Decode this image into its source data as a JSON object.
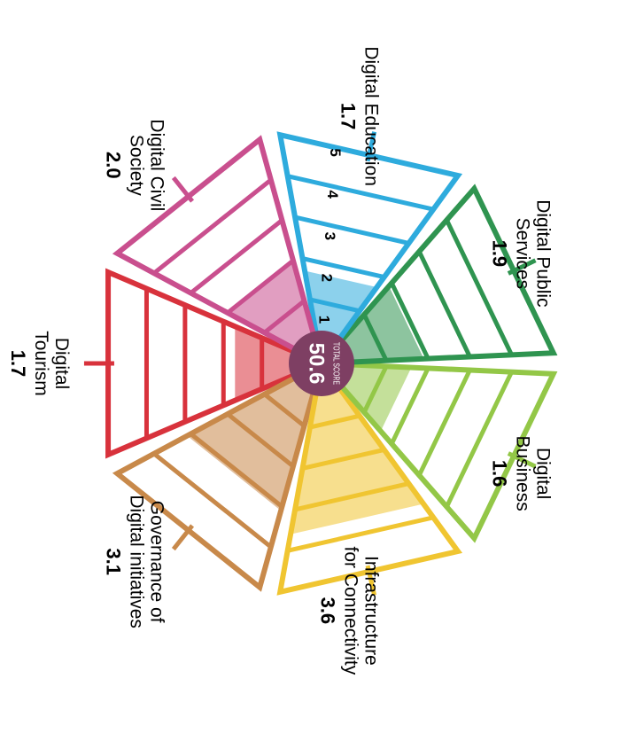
{
  "chart_data": {
    "type": "radial-segment",
    "max_level": 5,
    "rings": [
      "1",
      "2",
      "3",
      "4",
      "5"
    ],
    "total_label": "TOTAL SCORE",
    "total_value": "50.6",
    "segments": [
      {
        "name_lines": [
          "Digital",
          "Tourism"
        ],
        "value": 1.7,
        "value_label": "1.7",
        "color": "#d8323c"
      },
      {
        "name_lines": [
          "Governance of",
          "Digital initiatives"
        ],
        "value": 3.1,
        "value_label": "3.1",
        "color": "#c8894a"
      },
      {
        "name_lines": [
          "Infrastructure",
          "for Connectivity"
        ],
        "value": 3.6,
        "value_label": "3.6",
        "color": "#f0c531"
      },
      {
        "name_lines": [
          "Digital",
          "Business"
        ],
        "value": 1.6,
        "value_label": "1.6",
        "color": "#93c747"
      },
      {
        "name_lines": [
          "Digital Public",
          "Services"
        ],
        "value": 1.9,
        "value_label": "1.9",
        "color": "#2f9450"
      },
      {
        "name_lines": [
          "Digital Education"
        ],
        "value": 1.7,
        "value_label": "1.7",
        "color": "#2eabdd"
      },
      {
        "name_lines": [
          "Digital Civil",
          "Society"
        ],
        "value": 2.0,
        "value_label": "2.0",
        "color": "#c94f8e"
      }
    ],
    "center_color": "#7e3f63"
  }
}
